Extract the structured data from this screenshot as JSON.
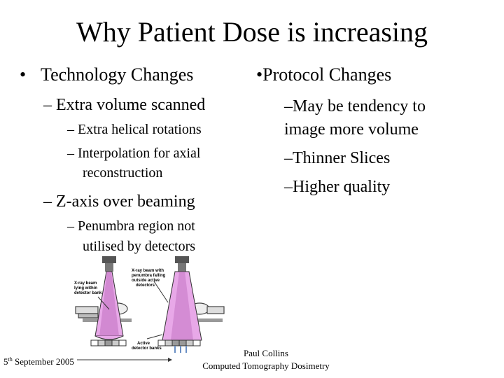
{
  "slide": {
    "title": "Why Patient Dose is increasing",
    "left": {
      "bullet": "•",
      "heading": "Technology Changes",
      "item1": "– Extra volume scanned",
      "sub1": "– Extra helical rotations",
      "sub2a": "– Interpolation for axial",
      "sub2b": "reconstruction",
      "item2": "– Z-axis over beaming",
      "sub3a": "– Penumbra region not",
      "sub3b": "utilised by detectors"
    },
    "right": {
      "heading": "•Protocol Changes",
      "line1": "–May be tendency to",
      "line2": "image more volume",
      "line3": "–Thinner Slices",
      "line4": "–Higher quality"
    },
    "diagram": {
      "label_left": "X-ray beam lying within detector bank",
      "label_right": "X-ray beam with penumbra falling outside active detectors",
      "label_bottom": "Active detector banks",
      "colors": {
        "beam": "#e8a8e8",
        "beam_dark": "#c070c0",
        "gray": "#9a9a9a"
      }
    },
    "footer": {
      "date_day": "5",
      "date_suffix": "th",
      "date_rest": "September 2005",
      "author": "Paul Collins",
      "course": "Computed Tomography Dosimetry"
    }
  }
}
